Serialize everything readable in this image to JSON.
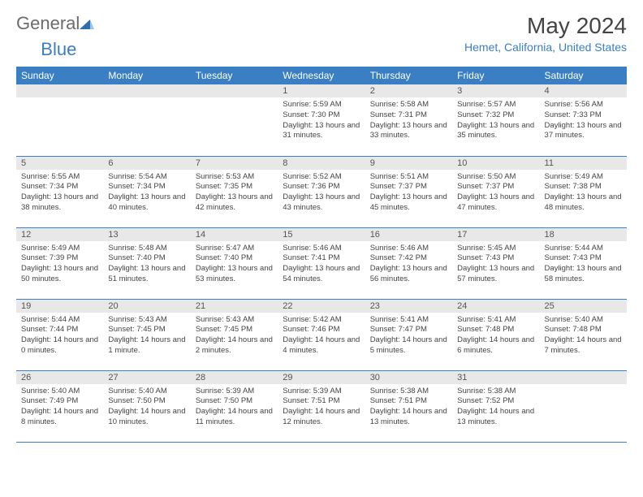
{
  "logo": {
    "text1": "General",
    "text2": "Blue"
  },
  "title": "May 2024",
  "location": "Hemet, California, United States",
  "colors": {
    "accent": "#3a7fc4",
    "header_bg": "#3a7fc4",
    "header_text": "#ffffff",
    "daynum_bg": "#e8e8e8",
    "text": "#444444",
    "logo_gray": "#6b6b6b"
  },
  "weekdays": [
    "Sunday",
    "Monday",
    "Tuesday",
    "Wednesday",
    "Thursday",
    "Friday",
    "Saturday"
  ],
  "layout": {
    "first_weekday_index": 3,
    "days_in_month": 31,
    "rows": 5,
    "cols": 7
  },
  "days": {
    "1": {
      "sunrise": "5:59 AM",
      "sunset": "7:30 PM",
      "daylight": "13 hours and 31 minutes."
    },
    "2": {
      "sunrise": "5:58 AM",
      "sunset": "7:31 PM",
      "daylight": "13 hours and 33 minutes."
    },
    "3": {
      "sunrise": "5:57 AM",
      "sunset": "7:32 PM",
      "daylight": "13 hours and 35 minutes."
    },
    "4": {
      "sunrise": "5:56 AM",
      "sunset": "7:33 PM",
      "daylight": "13 hours and 37 minutes."
    },
    "5": {
      "sunrise": "5:55 AM",
      "sunset": "7:34 PM",
      "daylight": "13 hours and 38 minutes."
    },
    "6": {
      "sunrise": "5:54 AM",
      "sunset": "7:34 PM",
      "daylight": "13 hours and 40 minutes."
    },
    "7": {
      "sunrise": "5:53 AM",
      "sunset": "7:35 PM",
      "daylight": "13 hours and 42 minutes."
    },
    "8": {
      "sunrise": "5:52 AM",
      "sunset": "7:36 PM",
      "daylight": "13 hours and 43 minutes."
    },
    "9": {
      "sunrise": "5:51 AM",
      "sunset": "7:37 PM",
      "daylight": "13 hours and 45 minutes."
    },
    "10": {
      "sunrise": "5:50 AM",
      "sunset": "7:37 PM",
      "daylight": "13 hours and 47 minutes."
    },
    "11": {
      "sunrise": "5:49 AM",
      "sunset": "7:38 PM",
      "daylight": "13 hours and 48 minutes."
    },
    "12": {
      "sunrise": "5:49 AM",
      "sunset": "7:39 PM",
      "daylight": "13 hours and 50 minutes."
    },
    "13": {
      "sunrise": "5:48 AM",
      "sunset": "7:40 PM",
      "daylight": "13 hours and 51 minutes."
    },
    "14": {
      "sunrise": "5:47 AM",
      "sunset": "7:40 PM",
      "daylight": "13 hours and 53 minutes."
    },
    "15": {
      "sunrise": "5:46 AM",
      "sunset": "7:41 PM",
      "daylight": "13 hours and 54 minutes."
    },
    "16": {
      "sunrise": "5:46 AM",
      "sunset": "7:42 PM",
      "daylight": "13 hours and 56 minutes."
    },
    "17": {
      "sunrise": "5:45 AM",
      "sunset": "7:43 PM",
      "daylight": "13 hours and 57 minutes."
    },
    "18": {
      "sunrise": "5:44 AM",
      "sunset": "7:43 PM",
      "daylight": "13 hours and 58 minutes."
    },
    "19": {
      "sunrise": "5:44 AM",
      "sunset": "7:44 PM",
      "daylight": "14 hours and 0 minutes."
    },
    "20": {
      "sunrise": "5:43 AM",
      "sunset": "7:45 PM",
      "daylight": "14 hours and 1 minute."
    },
    "21": {
      "sunrise": "5:43 AM",
      "sunset": "7:45 PM",
      "daylight": "14 hours and 2 minutes."
    },
    "22": {
      "sunrise": "5:42 AM",
      "sunset": "7:46 PM",
      "daylight": "14 hours and 4 minutes."
    },
    "23": {
      "sunrise": "5:41 AM",
      "sunset": "7:47 PM",
      "daylight": "14 hours and 5 minutes."
    },
    "24": {
      "sunrise": "5:41 AM",
      "sunset": "7:48 PM",
      "daylight": "14 hours and 6 minutes."
    },
    "25": {
      "sunrise": "5:40 AM",
      "sunset": "7:48 PM",
      "daylight": "14 hours and 7 minutes."
    },
    "26": {
      "sunrise": "5:40 AM",
      "sunset": "7:49 PM",
      "daylight": "14 hours and 8 minutes."
    },
    "27": {
      "sunrise": "5:40 AM",
      "sunset": "7:50 PM",
      "daylight": "14 hours and 10 minutes."
    },
    "28": {
      "sunrise": "5:39 AM",
      "sunset": "7:50 PM",
      "daylight": "14 hours and 11 minutes."
    },
    "29": {
      "sunrise": "5:39 AM",
      "sunset": "7:51 PM",
      "daylight": "14 hours and 12 minutes."
    },
    "30": {
      "sunrise": "5:38 AM",
      "sunset": "7:51 PM",
      "daylight": "14 hours and 13 minutes."
    },
    "31": {
      "sunrise": "5:38 AM",
      "sunset": "7:52 PM",
      "daylight": "14 hours and 13 minutes."
    }
  },
  "labels": {
    "sunrise_prefix": "Sunrise: ",
    "sunset_prefix": "Sunset: ",
    "daylight_prefix": "Daylight: "
  }
}
